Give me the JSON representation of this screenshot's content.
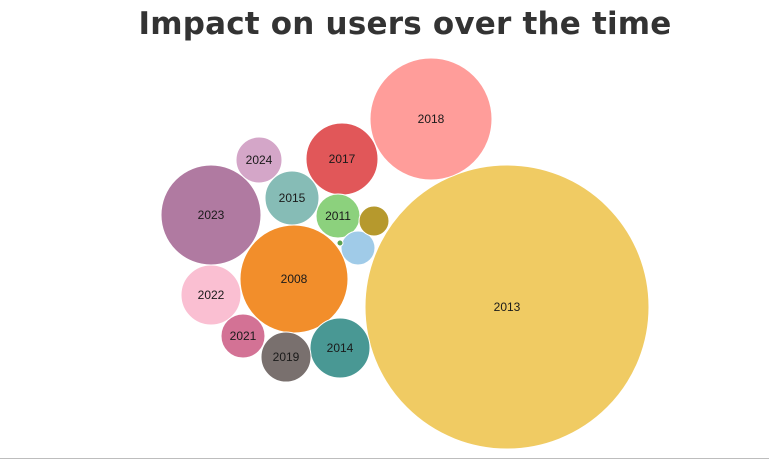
{
  "chart_data": {
    "type": "bubble",
    "title": "Impact on users over the time",
    "bubbles": [
      {
        "label": "2013",
        "color": "#F0CB63"
      },
      {
        "label": "2018",
        "color": "#FF9D9A"
      },
      {
        "label": "2008",
        "color": "#F28E2B"
      },
      {
        "label": "2023",
        "color": "#B07AA1"
      },
      {
        "label": "2017",
        "color": "#E15759"
      },
      {
        "label": "2014",
        "color": "#499894"
      },
      {
        "label": "2022",
        "color": "#FABFD2"
      },
      {
        "label": "2015",
        "color": "#86BCB6"
      },
      {
        "label": "2019",
        "color": "#79706E"
      },
      {
        "label": "2024",
        "color": "#D4A6C8"
      },
      {
        "label": "2021",
        "color": "#D37295"
      },
      {
        "label": "2011",
        "color": "#8CD17D"
      },
      {
        "label": "",
        "color": "#A0CBE8"
      },
      {
        "label": "",
        "color": "#B6992D"
      },
      {
        "label": "",
        "color": "#59A14F"
      }
    ]
  }
}
